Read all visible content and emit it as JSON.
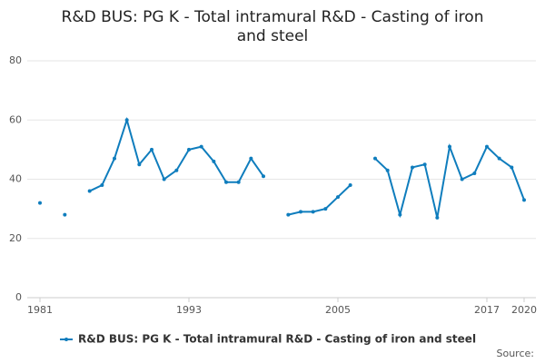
{
  "chart_data": {
    "type": "line",
    "title": "R&D BUS: PG K - Total intramural R&D - Casting of iron and steel",
    "x": [
      1981,
      1982,
      1983,
      1984,
      1985,
      1986,
      1987,
      1988,
      1989,
      1990,
      1991,
      1992,
      1993,
      1994,
      1995,
      1996,
      1997,
      1998,
      1999,
      2000,
      2001,
      2002,
      2003,
      2004,
      2005,
      2006,
      2007,
      2008,
      2009,
      2010,
      2011,
      2012,
      2013,
      2014,
      2015,
      2016,
      2017,
      2018,
      2019,
      2020
    ],
    "series": [
      {
        "name": "R&D BUS: PG K - Total intramural R&D - Casting of iron and steel",
        "color": "#0f7dbd",
        "values": [
          32,
          null,
          28,
          null,
          36,
          38,
          47,
          60,
          45,
          50,
          40,
          43,
          50,
          51,
          46,
          39,
          39,
          47,
          41,
          null,
          28,
          29,
          29,
          30,
          34,
          38,
          null,
          47,
          43,
          28,
          44,
          45,
          27,
          51,
          40,
          42,
          51,
          47,
          44,
          33
        ]
      }
    ],
    "xlim": [
      1981,
      2020
    ],
    "xticks": [
      1981,
      1993,
      2005,
      2017,
      2020
    ],
    "ylim": [
      0,
      80
    ],
    "yticks": [
      0,
      20,
      40,
      60,
      80
    ],
    "grid": true,
    "source": "Source:"
  }
}
